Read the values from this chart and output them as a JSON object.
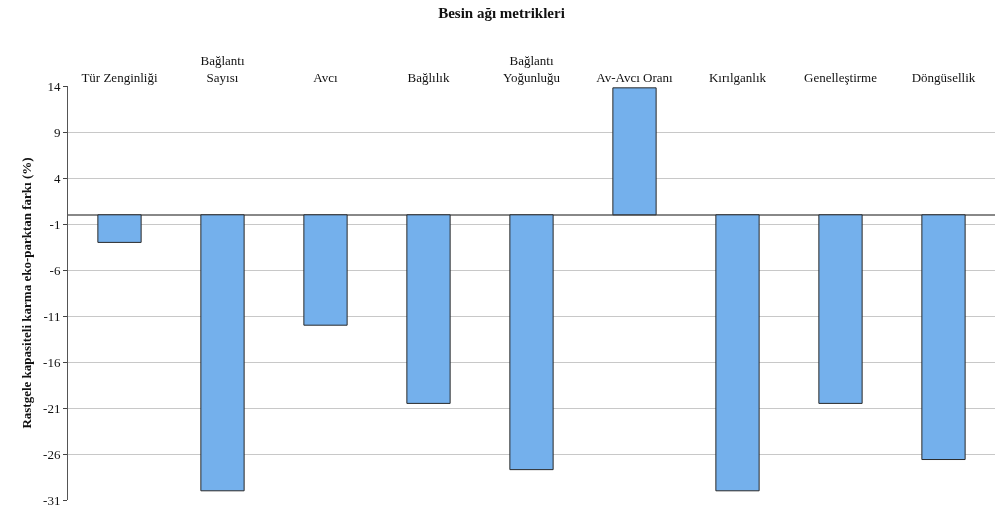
{
  "chart_data": {
    "type": "bar",
    "title": "Besin ağı metrikleri",
    "ylabel": "Rastgele kapasiteli karma eko-parktan farkı (%)",
    "categories": [
      "Tür Zenginliği",
      "Bağlantı\nSayısı",
      "Avcı",
      "Bağlılık",
      "Bağlantı\nYoğunluğu",
      "Av-Avcı Oranı",
      "Kırılganlık",
      "Genelleştirme",
      "Döngüsellik"
    ],
    "values": [
      -3,
      -30,
      -12,
      -20.5,
      -27.7,
      13.8,
      -30,
      -20.5,
      -26.6
    ],
    "color": "#74b0ec",
    "ylim": [
      -31,
      14
    ],
    "yticks": [
      14,
      9,
      4,
      -1,
      -6,
      -11,
      -16,
      -21,
      -26,
      -31
    ],
    "grid": "y",
    "legend": false
  }
}
